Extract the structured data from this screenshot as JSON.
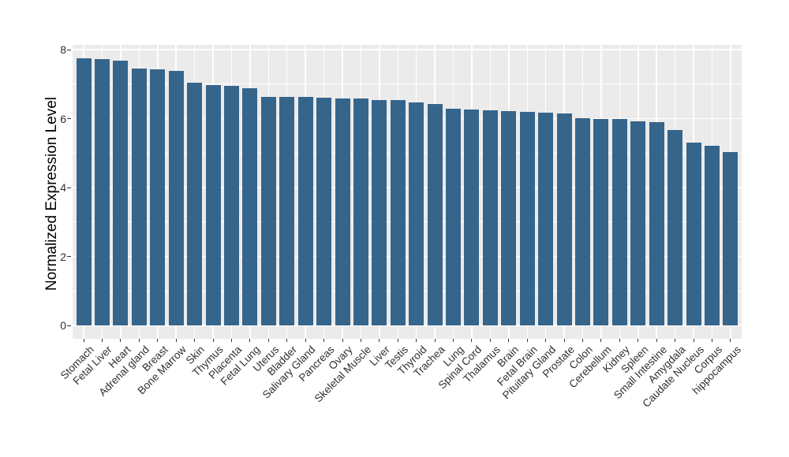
{
  "chart_data": {
    "type": "bar",
    "title": "",
    "ylabel": "Normalized Expression Level",
    "xlabel": "",
    "ylim": [
      0,
      8
    ],
    "yticks": [
      0,
      2,
      4,
      6,
      8
    ],
    "grid": "on",
    "legend": "none",
    "x_label_angle_deg": 45,
    "categories": [
      "Stomach",
      "Fetal Liver",
      "Heart",
      "Adrenal gland",
      "Breast",
      "Bone Marrow",
      "Skin",
      "Thymus",
      "Placenta",
      "Fetal Lung",
      "Uterus",
      "Bladder",
      "Salivary Gland",
      "Pancreas",
      "Ovary",
      "Skeletal Muscle",
      "Liver",
      "Testis",
      "Thyroid",
      "Trachea",
      "Lung",
      "Spinal Cord",
      "Thalamus",
      "Brain",
      "Fetal Brain",
      "Pituitary Gland",
      "Prostate",
      "Colon",
      "Cerebellum",
      "Kidney",
      "Spleen",
      "Small Intestine",
      "Amygdala",
      "Caudate Nucleus",
      "Corpus",
      "hippocampus"
    ],
    "values": [
      7.76,
      7.73,
      7.69,
      7.45,
      7.43,
      7.39,
      7.03,
      6.97,
      6.96,
      6.88,
      6.64,
      6.63,
      6.62,
      6.6,
      6.59,
      6.58,
      6.54,
      6.53,
      6.48,
      6.43,
      6.28,
      6.26,
      6.24,
      6.21,
      6.2,
      6.17,
      6.15,
      6.01,
      6.0,
      5.98,
      5.91,
      5.9,
      5.68,
      5.31,
      5.22,
      5.04
    ],
    "colors": {
      "bar": "#36658C",
      "panel_bg": "#EBEBEB",
      "grid": "#FFFFFF",
      "axis_text": "#303030",
      "axis_title": "#000000",
      "tick_mark": "#333333",
      "page_bg": "#FFFFFF"
    }
  }
}
